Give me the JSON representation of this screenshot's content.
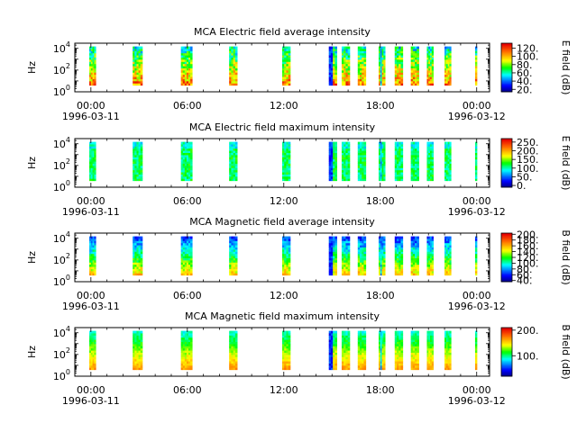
{
  "chart_data": [
    {
      "type": "heatmap",
      "title": "MCA  Electric field average intensity",
      "ylabel": "Hz",
      "yscale": "log",
      "ylim": [
        1,
        30000
      ],
      "y_ticks": [
        {
          "exp": "0",
          "value": 1
        },
        {
          "exp": "2",
          "value": 100
        },
        {
          "exp": "4",
          "value": 10000
        }
      ],
      "x_ticks": [
        "00:00",
        "06:00",
        "12:00",
        "18:00",
        "00:00"
      ],
      "x_dates": [
        "1996-03-11",
        "1996-03-12"
      ],
      "xlim_hours": [
        -1,
        24.8
      ],
      "colorbar": {
        "label": "E field (dB)",
        "ticks": [
          "20.",
          "40.",
          "60.",
          "80.",
          "100.",
          "120."
        ],
        "tick_values": [
          20,
          40,
          60,
          80,
          100,
          120
        ],
        "range": [
          14,
          132
        ]
      },
      "passes_hours": [
        [
          -0.1,
          0.3
        ],
        [
          2.6,
          3.2
        ],
        [
          5.6,
          6.3
        ],
        [
          8.6,
          9.1
        ],
        [
          11.9,
          12.4
        ],
        [
          14.8,
          15.3
        ],
        [
          15.6,
          16.1
        ],
        [
          16.6,
          17.1
        ],
        [
          17.9,
          18.3
        ],
        [
          18.9,
          19.4
        ],
        [
          19.9,
          20.4
        ],
        [
          20.9,
          21.3
        ],
        [
          22.0,
          22.4
        ],
        [
          23.9,
          24.0
        ]
      ],
      "intensity_profile": "high at low frequency, moderate at mid, lower at high frequency"
    },
    {
      "type": "heatmap",
      "title": "MCA  Electric field maximum intensity",
      "ylabel": "Hz",
      "yscale": "log",
      "ylim": [
        1,
        30000
      ],
      "y_ticks": [
        {
          "exp": "0",
          "value": 1
        },
        {
          "exp": "2",
          "value": 100
        },
        {
          "exp": "4",
          "value": 10000
        }
      ],
      "x_ticks": [
        "00:00",
        "06:00",
        "12:00",
        "18:00",
        "00:00"
      ],
      "x_dates": [
        "1996-03-11",
        "1996-03-12"
      ],
      "xlim_hours": [
        -1,
        24.8
      ],
      "colorbar": {
        "label": "E field (dB)",
        "ticks": [
          "0.",
          "50.",
          "100.",
          "150.",
          "200.",
          "250."
        ],
        "tick_values": [
          0,
          50,
          100,
          150,
          200,
          250
        ],
        "range": [
          -10,
          270
        ]
      },
      "passes_hours": [
        [
          -0.1,
          0.3
        ],
        [
          2.6,
          3.2
        ],
        [
          5.6,
          6.3
        ],
        [
          8.6,
          9.1
        ],
        [
          11.9,
          12.4
        ],
        [
          14.8,
          15.3
        ],
        [
          15.6,
          16.1
        ],
        [
          16.6,
          17.1
        ],
        [
          17.9,
          18.3
        ],
        [
          18.9,
          19.4
        ],
        [
          19.9,
          20.4
        ],
        [
          20.9,
          21.3
        ],
        [
          22.0,
          22.4
        ],
        [
          23.9,
          24.0
        ]
      ],
      "intensity_profile": "mostly uniform moderate values"
    },
    {
      "type": "heatmap",
      "title": "MCA  Magnetic field average intensity",
      "ylabel": "Hz",
      "yscale": "log",
      "ylim": [
        1,
        30000
      ],
      "y_ticks": [
        {
          "exp": "0",
          "value": 1
        },
        {
          "exp": "2",
          "value": 100
        },
        {
          "exp": "4",
          "value": 10000
        }
      ],
      "x_ticks": [
        "00:00",
        "06:00",
        "12:00",
        "18:00",
        "00:00"
      ],
      "x_dates": [
        "1996-03-11",
        "1996-03-12"
      ],
      "xlim_hours": [
        -1,
        24.8
      ],
      "colorbar": {
        "label": "B field (dB)",
        "ticks": [
          "40.",
          "60.",
          "80.",
          "100.",
          "120.",
          "140.",
          "160.",
          "180.",
          "200."
        ],
        "tick_values": [
          40,
          60,
          80,
          100,
          120,
          140,
          160,
          180,
          200
        ],
        "range": [
          36,
          204
        ]
      },
      "passes_hours": [
        [
          -0.1,
          0.3
        ],
        [
          2.6,
          3.2
        ],
        [
          5.6,
          6.3
        ],
        [
          8.6,
          9.1
        ],
        [
          11.9,
          12.4
        ],
        [
          14.8,
          15.3
        ],
        [
          15.6,
          16.1
        ],
        [
          16.6,
          17.1
        ],
        [
          17.9,
          18.3
        ],
        [
          18.9,
          19.4
        ],
        [
          19.9,
          20.4
        ],
        [
          20.9,
          21.3
        ],
        [
          22.0,
          22.4
        ],
        [
          23.9,
          24.0
        ]
      ],
      "intensity_profile": "high at low frequency, decreasing toward high frequency"
    },
    {
      "type": "heatmap",
      "title": "MCA  Magnetic field maximum intensity",
      "ylabel": "Hz",
      "yscale": "log",
      "ylim": [
        1,
        30000
      ],
      "y_ticks": [
        {
          "exp": "0",
          "value": 1
        },
        {
          "exp": "2",
          "value": 100
        },
        {
          "exp": "4",
          "value": 10000
        }
      ],
      "x_ticks": [
        "00:00",
        "06:00",
        "12:00",
        "18:00",
        "00:00"
      ],
      "x_dates": [
        "1996-03-11",
        "1996-03-12"
      ],
      "xlim_hours": [
        -1,
        24.8
      ],
      "colorbar": {
        "label": "B field (dB)",
        "ticks": [
          "100.",
          "200."
        ],
        "tick_values": [
          100,
          200
        ],
        "range": [
          20,
          210
        ]
      },
      "passes_hours": [
        [
          -0.1,
          0.3
        ],
        [
          2.6,
          3.2
        ],
        [
          5.6,
          6.3
        ],
        [
          8.6,
          9.1
        ],
        [
          11.9,
          12.4
        ],
        [
          14.8,
          15.3
        ],
        [
          15.6,
          16.1
        ],
        [
          16.6,
          17.1
        ],
        [
          17.9,
          18.3
        ],
        [
          18.9,
          19.4
        ],
        [
          19.9,
          20.4
        ],
        [
          20.9,
          21.3
        ],
        [
          22.0,
          22.4
        ],
        [
          23.9,
          24.0
        ]
      ],
      "intensity_profile": "high (yellow/orange) at low frequency, green above"
    }
  ]
}
